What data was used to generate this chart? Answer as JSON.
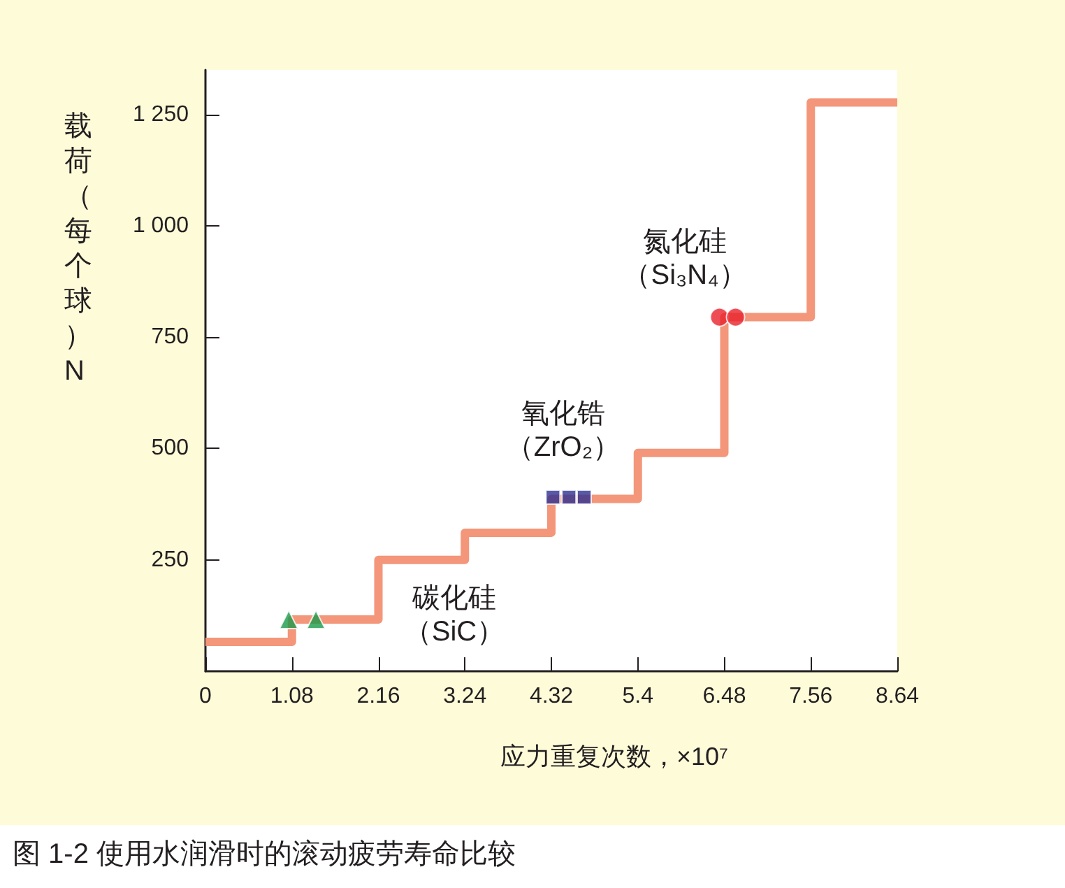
{
  "chart_data": {
    "type": "step",
    "title": "图 1-2 使用水润滑时的滚动疲劳寿命比较",
    "xlabel": "应力重复次数，×10⁷",
    "ylabel": "载荷（每个球）N",
    "x": [
      0,
      1.08,
      2.16,
      3.24,
      4.32,
      5.4,
      6.48,
      7.56,
      8.64
    ],
    "series": [
      {
        "color": "#f4967a",
        "marker": "none",
        "values": [
          66,
          116,
          250,
          311,
          387,
          490,
          795,
          1277,
          1277
        ]
      },
      {
        "type": "scatter",
        "color": "#1a9a4a",
        "marker": "triangle",
        "x": [
          1.04,
          1.38
        ],
        "values": [
          116,
          116
        ]
      },
      {
        "type": "scatter",
        "color": "#2e3192",
        "marker": "square",
        "x": [
          4.34,
          4.54,
          4.73
        ],
        "values": [
          391,
          391,
          391
        ]
      },
      {
        "type": "scatter",
        "color": "#e8202a",
        "marker": "circle",
        "x": [
          6.42,
          6.62
        ],
        "values": [
          795,
          795
        ]
      }
    ],
    "annotations": [
      "碳化硅（SiC）",
      "氧化锆（ZrO₂）",
      "氮化硅（Si₃N₄）"
    ],
    "xlim": [
      0,
      8.64
    ],
    "xticks": [
      0,
      1.08,
      2.16,
      3.24,
      4.32,
      5.4,
      6.48,
      7.56,
      8.64
    ],
    "ylim": [
      0,
      1350
    ],
    "yticks": [
      250,
      500,
      750,
      {
        "value": 1000,
        "label": "1 000"
      },
      {
        "value": 1250,
        "label": "1 250"
      }
    ],
    "grid": false
  }
}
